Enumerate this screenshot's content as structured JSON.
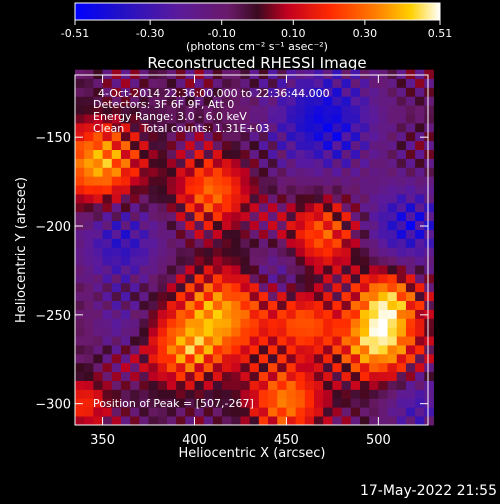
{
  "chart_data": {
    "type": "heatmap",
    "title": "Reconstructed RHESSI Image",
    "xlabel": "Heliocentric X (arcsec)",
    "ylabel": "Heliocentric Y (arcsec)",
    "xlim": [
      335,
      527
    ],
    "ylim": [
      -312,
      -115
    ],
    "x_ticks": [
      350,
      400,
      450,
      500
    ],
    "y_ticks": [
      -150,
      -200,
      -250,
      -300
    ],
    "grid": false,
    "colorbar": {
      "position": "top",
      "range": [
        -0.51,
        0.51
      ],
      "ticks": [
        {
          "value": -0.51,
          "label": "-0.51"
        },
        {
          "value": -0.3,
          "label": "-0.30"
        },
        {
          "value": -0.1,
          "label": "-0.10"
        },
        {
          "value": 0.1,
          "label": "0.10"
        },
        {
          "value": 0.3,
          "label": "0.30"
        },
        {
          "value": 0.51,
          "label": "0.51"
        }
      ],
      "unit_label": "(photons cm⁻² s⁻¹ asec⁻²)"
    },
    "info": [
      "4-Oct-2014 22:36:00.000 to 22:36:44.000",
      "Detectors: 3F 6F 9F, Att 0",
      "Energy Range: 3.0 - 6.0 keV",
      "Clean     Total counts: 1.31E+03"
    ],
    "peak_label": "Position of Peak = [507,-267]",
    "peak": [
      507,
      -267
    ],
    "blobs": [
      {
        "x": 348,
        "y": -165,
        "v": 0.45,
        "r": 16
      },
      {
        "x": 410,
        "y": -180,
        "v": 0.35,
        "r": 14
      },
      {
        "x": 415,
        "y": -250,
        "v": 0.42,
        "r": 18
      },
      {
        "x": 392,
        "y": -270,
        "v": 0.3,
        "r": 14
      },
      {
        "x": 470,
        "y": -205,
        "v": 0.32,
        "r": 14
      },
      {
        "x": 460,
        "y": -255,
        "v": 0.3,
        "r": 12
      },
      {
        "x": 500,
        "y": -265,
        "v": 0.51,
        "r": 15
      },
      {
        "x": 505,
        "y": -240,
        "v": 0.38,
        "r": 12
      },
      {
        "x": 450,
        "y": -298,
        "v": 0.38,
        "r": 14
      },
      {
        "x": 340,
        "y": -300,
        "v": 0.25,
        "r": 10
      },
      {
        "x": 360,
        "y": -210,
        "v": -0.28,
        "r": 16
      },
      {
        "x": 470,
        "y": -140,
        "v": -0.38,
        "r": 20
      },
      {
        "x": 515,
        "y": -200,
        "v": -0.32,
        "r": 16
      },
      {
        "x": 445,
        "y": -225,
        "v": -0.18,
        "r": 10
      },
      {
        "x": 520,
        "y": -300,
        "v": -0.22,
        "r": 12
      },
      {
        "x": 360,
        "y": -255,
        "v": -0.15,
        "r": 10
      }
    ]
  },
  "footer": {
    "timestamp": "17-May-2022 21:55"
  }
}
